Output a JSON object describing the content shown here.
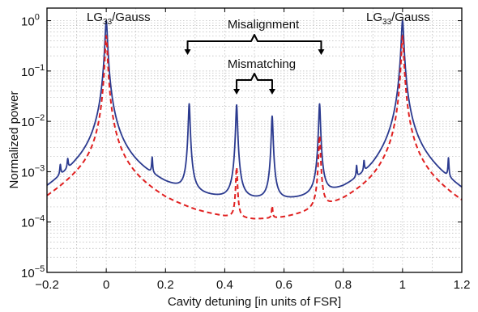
{
  "chart_data": {
    "type": "line",
    "title": "",
    "xlabel": "Cavity detuning [in units of FSR]",
    "ylabel": "Normalized power",
    "xlim": [
      -0.2,
      1.2
    ],
    "ylim_log10": [
      -5,
      0.25
    ],
    "y_scale": "log",
    "grid": true,
    "x_ticks": [
      -0.2,
      0,
      0.2,
      0.4,
      0.6,
      0.8,
      1,
      1.2
    ],
    "x_tick_labels": [
      "−0.2",
      "0",
      "0.2",
      "0.4",
      "0.6",
      "0.8",
      "1",
      "1.2"
    ],
    "y_ticks_exp": [
      0,
      -1,
      -2,
      -3,
      -4,
      -5
    ],
    "y_tick_base": "10",
    "y_tick_exponents": [
      "0",
      "−1",
      "−2",
      "−3",
      "−4",
      "−5"
    ],
    "series": [
      {
        "style": "solid",
        "color": "#2b3a8f",
        "floor": [
          [
            -0.2,
            0.00022
          ],
          [
            -0.1,
            0.0006
          ],
          [
            0,
            0.0012
          ],
          [
            0.1,
            0.0006
          ],
          [
            0.2,
            0.00032
          ],
          [
            0.3,
            0.00021
          ],
          [
            0.4,
            0.00018
          ],
          [
            0.5,
            0.00017
          ],
          [
            0.6,
            0.00016
          ],
          [
            0.7,
            0.00016
          ],
          [
            0.8,
            0.00019
          ],
          [
            0.9,
            0.00035
          ],
          [
            1.0,
            0.0012
          ],
          [
            1.1,
            0.0005
          ],
          [
            1.2,
            0.00018
          ]
        ],
        "peaks": [
          {
            "x": 0.0,
            "y": 1.0,
            "w": 0.0035
          },
          {
            "x": 1.0,
            "y": 1.0,
            "w": 0.0035
          },
          {
            "x": -0.155,
            "y": 0.00053,
            "w": 0.002
          },
          {
            "x": -0.13,
            "y": 0.00065,
            "w": 0.002
          },
          {
            "x": 0.155,
            "y": 0.001,
            "w": 0.0017
          },
          {
            "x": 0.28,
            "y": 0.022,
            "w": 0.0025
          },
          {
            "x": 0.44,
            "y": 0.021,
            "w": 0.0025
          },
          {
            "x": 0.56,
            "y": 0.0125,
            "w": 0.0025
          },
          {
            "x": 0.72,
            "y": 0.022,
            "w": 0.0025
          },
          {
            "x": 0.845,
            "y": 0.00055,
            "w": 0.0017
          },
          {
            "x": 0.87,
            "y": 0.00065,
            "w": 0.0017
          },
          {
            "x": 1.155,
            "y": 0.0011,
            "w": 0.0017
          }
        ]
      },
      {
        "style": "dashed",
        "color": "#e02020",
        "floor": [
          [
            -0.2,
            0.00018
          ],
          [
            -0.1,
            0.00045
          ],
          [
            0,
            0.0009
          ],
          [
            0.1,
            0.00035
          ],
          [
            0.2,
            0.00016
          ],
          [
            0.3,
            0.0001
          ],
          [
            0.4,
            7.5e-05
          ],
          [
            0.5,
            6.5e-05
          ],
          [
            0.6,
            7e-05
          ],
          [
            0.7,
            9e-05
          ],
          [
            0.8,
            0.00014
          ],
          [
            0.9,
            0.00028
          ],
          [
            1.0,
            0.0009
          ],
          [
            1.1,
            0.0003
          ],
          [
            1.2,
            0.00012
          ]
        ],
        "peaks": [
          {
            "x": 0.0,
            "y": 0.5,
            "w": 0.0035
          },
          {
            "x": 1.0,
            "y": 0.5,
            "w": 0.0035
          },
          {
            "x": 0.44,
            "y": 0.0011,
            "w": 0.0025
          },
          {
            "x": 0.56,
            "y": 9e-05,
            "w": 0.002
          },
          {
            "x": 0.72,
            "y": 0.005,
            "w": 0.0028
          }
        ]
      }
    ],
    "annotations": {
      "left_label_main": "LG",
      "left_label_sub": "33",
      "left_label_rest": "/Gauss",
      "right_label_main": "LG",
      "right_label_sub": "33",
      "right_label_rest": "/Gauss",
      "misalignment": "Misalignment",
      "misalignment_span": [
        0.28,
        0.72
      ],
      "mismatching": "Mismatching",
      "mismatching_span": [
        0.44,
        0.56
      ]
    }
  }
}
